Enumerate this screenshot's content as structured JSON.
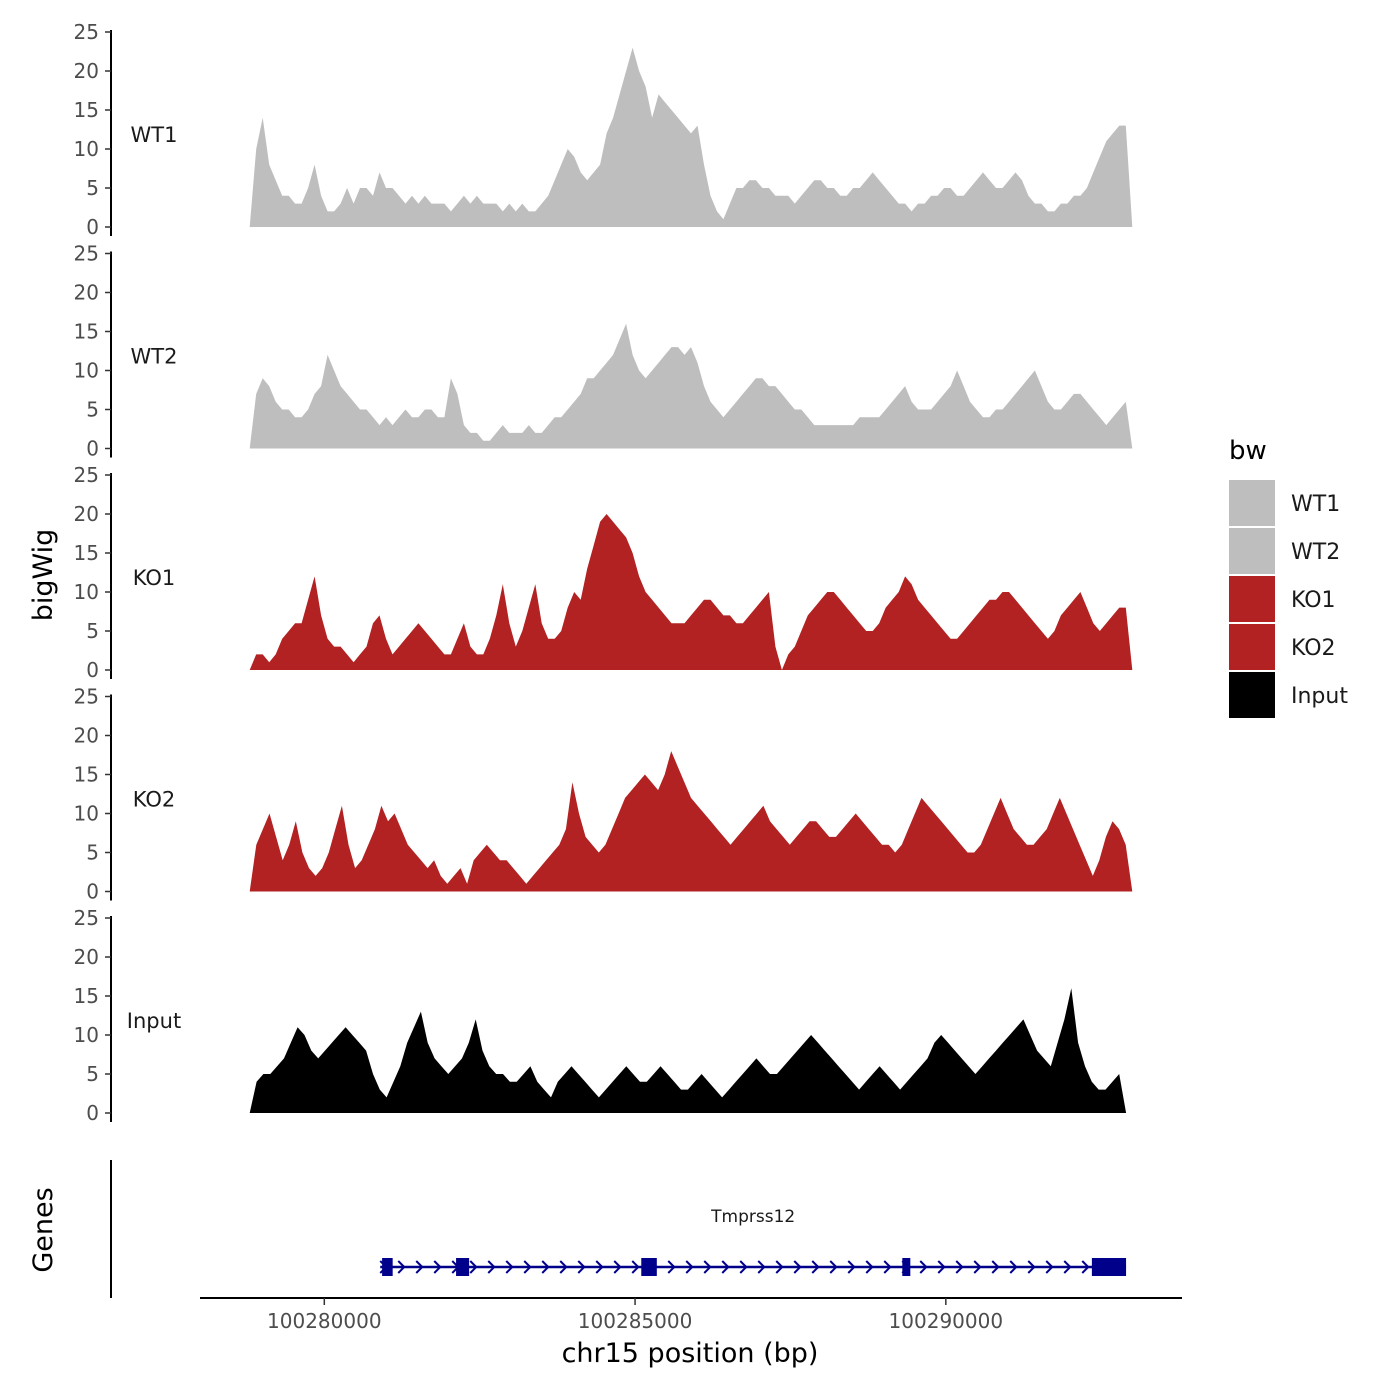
{
  "chart_data": {
    "type": "area",
    "ylabel": "bigWig",
    "xlabel": "chr15 position (bp)",
    "ylim": [
      0,
      25
    ],
    "yticks": [
      "0",
      "5",
      "10",
      "15",
      "20",
      "25"
    ],
    "xlim": [
      100278000,
      100293800
    ],
    "xticks": [
      {
        "value": 100280000,
        "label": "100280000"
      },
      {
        "value": 100285000,
        "label": "100285000"
      },
      {
        "value": 100290000,
        "label": "100290000"
      }
    ],
    "legend": {
      "title": "bw",
      "position": "right",
      "entries": [
        {
          "label": "WT1",
          "color": "#BEBEBE"
        },
        {
          "label": "WT2",
          "color": "#BEBEBE"
        },
        {
          "label": "KO1",
          "color": "#B22222"
        },
        {
          "label": "KO2",
          "color": "#B22222"
        },
        {
          "label": "Input",
          "color": "#000000"
        }
      ]
    },
    "tracks": [
      {
        "name": "WT1",
        "color": "#BEBEBE",
        "x_start": 100278800,
        "x_end": 100293000,
        "values": [
          0,
          10,
          14,
          8,
          6,
          4,
          4,
          3,
          3,
          5,
          8,
          4,
          2,
          2,
          3,
          5,
          3,
          5,
          5,
          4,
          7,
          5,
          5,
          4,
          3,
          4,
          3,
          4,
          3,
          3,
          3,
          2,
          3,
          4,
          3,
          4,
          3,
          3,
          3,
          2,
          3,
          2,
          3,
          2,
          2,
          3,
          4,
          6,
          8,
          10,
          9,
          7,
          6,
          7,
          8,
          12,
          14,
          17,
          20,
          23,
          20,
          18,
          14,
          17,
          16,
          15,
          14,
          13,
          12,
          13,
          8,
          4,
          2,
          1,
          3,
          5,
          5,
          6,
          6,
          5,
          5,
          4,
          4,
          4,
          3,
          4,
          5,
          6,
          6,
          5,
          5,
          4,
          4,
          5,
          5,
          6,
          7,
          6,
          5,
          4,
          3,
          3,
          2,
          3,
          3,
          4,
          4,
          5,
          5,
          4,
          4,
          5,
          6,
          7,
          6,
          5,
          5,
          6,
          7,
          6,
          4,
          3,
          3,
          2,
          2,
          3,
          3,
          4,
          4,
          5,
          7,
          9,
          11,
          12,
          13,
          13,
          0
        ]
      },
      {
        "name": "WT2",
        "color": "#BEBEBE",
        "x_start": 100278800,
        "x_end": 100293000,
        "values": [
          0,
          7,
          9,
          8,
          6,
          5,
          5,
          4,
          4,
          5,
          7,
          8,
          12,
          10,
          8,
          7,
          6,
          5,
          5,
          4,
          3,
          4,
          3,
          4,
          5,
          4,
          4,
          5,
          5,
          4,
          4,
          9,
          7,
          3,
          2,
          2,
          1,
          1,
          2,
          3,
          2,
          2,
          2,
          3,
          2,
          2,
          3,
          4,
          4,
          5,
          6,
          7,
          9,
          9,
          10,
          11,
          12,
          14,
          16,
          12,
          10,
          9,
          10,
          11,
          12,
          13,
          13,
          12,
          13,
          11,
          8,
          6,
          5,
          4,
          5,
          6,
          7,
          8,
          9,
          9,
          8,
          8,
          7,
          6,
          5,
          5,
          4,
          3,
          3,
          3,
          3,
          3,
          3,
          3,
          4,
          4,
          4,
          4,
          5,
          6,
          7,
          8,
          6,
          5,
          5,
          5,
          6,
          7,
          8,
          10,
          8,
          6,
          5,
          4,
          4,
          5,
          5,
          6,
          7,
          8,
          9,
          10,
          8,
          6,
          5,
          5,
          6,
          7,
          7,
          6,
          5,
          4,
          3,
          4,
          5,
          6,
          0
        ]
      },
      {
        "name": "KO1",
        "color": "#B22222",
        "x_start": 100278800,
        "x_end": 100293000,
        "values": [
          0,
          2,
          2,
          1,
          2,
          4,
          5,
          6,
          6,
          9,
          12,
          7,
          4,
          3,
          3,
          2,
          1,
          2,
          3,
          6,
          7,
          4,
          2,
          3,
          4,
          5,
          6,
          5,
          4,
          3,
          2,
          2,
          4,
          6,
          3,
          2,
          2,
          4,
          7,
          11,
          6,
          3,
          5,
          8,
          11,
          6,
          4,
          4,
          5,
          8,
          10,
          9,
          13,
          16,
          19,
          20,
          19,
          18,
          17,
          15,
          12,
          10,
          9,
          8,
          7,
          6,
          6,
          6,
          7,
          8,
          9,
          9,
          8,
          7,
          7,
          6,
          6,
          7,
          8,
          9,
          10,
          3,
          0,
          2,
          3,
          5,
          7,
          8,
          9,
          10,
          10,
          9,
          8,
          7,
          6,
          5,
          5,
          6,
          8,
          9,
          10,
          12,
          11,
          9,
          8,
          7,
          6,
          5,
          4,
          4,
          5,
          6,
          7,
          8,
          9,
          9,
          10,
          10,
          9,
          8,
          7,
          6,
          5,
          4,
          5,
          7,
          8,
          9,
          10,
          8,
          6,
          5,
          6,
          7,
          8,
          8,
          0
        ]
      },
      {
        "name": "KO2",
        "color": "#B22222",
        "x_start": 100278800,
        "x_end": 100293000,
        "values": [
          0,
          6,
          8,
          10,
          7,
          4,
          6,
          9,
          5,
          3,
          2,
          3,
          5,
          8,
          11,
          6,
          3,
          4,
          6,
          8,
          11,
          9,
          10,
          8,
          6,
          5,
          4,
          3,
          4,
          2,
          1,
          2,
          3,
          1,
          4,
          5,
          6,
          5,
          4,
          4,
          3,
          2,
          1,
          2,
          3,
          4,
          5,
          6,
          8,
          14,
          10,
          7,
          6,
          5,
          6,
          8,
          10,
          12,
          13,
          14,
          15,
          14,
          13,
          15,
          18,
          16,
          14,
          12,
          11,
          10,
          9,
          8,
          7,
          6,
          7,
          8,
          9,
          10,
          11,
          9,
          8,
          7,
          6,
          7,
          8,
          9,
          9,
          8,
          7,
          7,
          8,
          9,
          10,
          9,
          8,
          7,
          6,
          6,
          5,
          6,
          8,
          10,
          12,
          11,
          10,
          9,
          8,
          7,
          6,
          5,
          5,
          6,
          8,
          10,
          12,
          10,
          8,
          7,
          6,
          6,
          7,
          8,
          10,
          12,
          10,
          8,
          6,
          4,
          2,
          4,
          7,
          9,
          8,
          6,
          0
        ]
      },
      {
        "name": "Input",
        "color": "#000000",
        "x_start": 100278800,
        "x_end": 100292900,
        "values": [
          0,
          4,
          5,
          5,
          6,
          7,
          9,
          11,
          10,
          8,
          7,
          8,
          9,
          10,
          11,
          10,
          9,
          8,
          5,
          3,
          2,
          4,
          6,
          9,
          11,
          13,
          9,
          7,
          6,
          5,
          6,
          7,
          9,
          12,
          8,
          6,
          5,
          5,
          4,
          4,
          5,
          6,
          4,
          3,
          2,
          4,
          5,
          6,
          5,
          4,
          3,
          2,
          3,
          4,
          5,
          6,
          5,
          4,
          4,
          5,
          6,
          5,
          4,
          3,
          3,
          4,
          5,
          4,
          3,
          2,
          3,
          4,
          5,
          6,
          7,
          6,
          5,
          5,
          6,
          7,
          8,
          9,
          10,
          9,
          8,
          7,
          6,
          5,
          4,
          3,
          4,
          5,
          6,
          5,
          4,
          3,
          4,
          5,
          6,
          7,
          9,
          10,
          9,
          8,
          7,
          6,
          5,
          6,
          7,
          8,
          9,
          10,
          11,
          12,
          10,
          8,
          7,
          6,
          9,
          12,
          16,
          9,
          6,
          4,
          3,
          3,
          4,
          5,
          0
        ]
      }
    ],
    "gene_track": {
      "label": "Genes",
      "gene_name": "Tmprss12",
      "strand": "+",
      "start": 100280900,
      "end": 100292900,
      "exons": [
        {
          "start": 100280930,
          "end": 100281100
        },
        {
          "start": 100282120,
          "end": 100282330
        },
        {
          "start": 100285100,
          "end": 100285350
        },
        {
          "start": 100289300,
          "end": 100289420
        },
        {
          "start": 100292350,
          "end": 100292900
        }
      ]
    }
  }
}
